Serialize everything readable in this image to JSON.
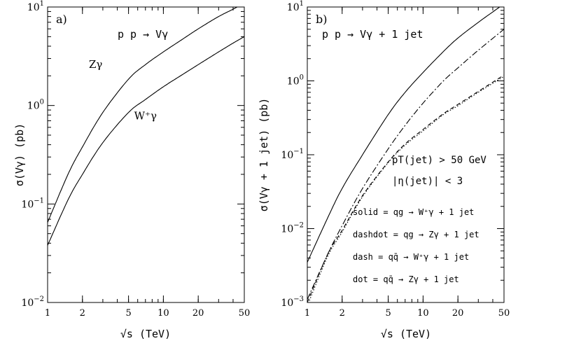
{
  "chart_data": [
    {
      "type": "line",
      "panel_label": "a)",
      "annotation": "p p → Vγ",
      "xlabel": "√s  (TeV)",
      "ylabel": "σ(Vγ)  (pb)",
      "xscale": "log",
      "yscale": "log",
      "xlim": [
        1,
        50
      ],
      "ylim": [
        0.01,
        10
      ],
      "xticks": [
        {
          "v": 1,
          "label": "1"
        },
        {
          "v": 2,
          "label": "2"
        },
        {
          "v": 5,
          "label": "5"
        },
        {
          "v": 10,
          "label": "10"
        },
        {
          "v": 20,
          "label": "20"
        },
        {
          "v": 50,
          "label": "50"
        }
      ],
      "yticks": [
        {
          "v": 0.01,
          "base": "10",
          "exp": "−2"
        },
        {
          "v": 0.1,
          "base": "10",
          "exp": "−1"
        },
        {
          "v": 1,
          "base": "10",
          "exp": "0"
        },
        {
          "v": 10,
          "base": "10",
          "exp": "1"
        }
      ],
      "series": [
        {
          "name": "Zγ",
          "style": "solid",
          "x": [
            1,
            1.5,
            2,
            3,
            5,
            7,
            10,
            15,
            20,
            30,
            40,
            50
          ],
          "y": [
            0.065,
            0.2,
            0.38,
            0.85,
            1.85,
            2.6,
            3.5,
            4.8,
            6.0,
            8.0,
            9.5,
            11.0
          ],
          "label": {
            "text": "Zγ",
            "x": 2.6,
            "y": 2.4
          }
        },
        {
          "name": "W⁺γ",
          "style": "solid",
          "x": [
            1,
            1.5,
            2,
            3,
            5,
            7,
            10,
            15,
            20,
            30,
            40,
            50
          ],
          "y": [
            0.038,
            0.11,
            0.2,
            0.42,
            0.85,
            1.15,
            1.55,
            2.1,
            2.6,
            3.5,
            4.3,
            5.0
          ],
          "label": {
            "text": "W⁺γ",
            "x": 7.0,
            "y": 0.72
          }
        }
      ]
    },
    {
      "type": "line",
      "panel_label": "b)",
      "annotation": "p p → Vγ + 1 jet",
      "xlabel": "√s  (TeV)",
      "ylabel": "σ(Vγ + 1 jet)  (pb)",
      "xscale": "log",
      "yscale": "log",
      "xlim": [
        1,
        50
      ],
      "ylim": [
        0.001,
        10
      ],
      "xticks": [
        {
          "v": 1,
          "label": "1"
        },
        {
          "v": 2,
          "label": "2"
        },
        {
          "v": 5,
          "label": "5"
        },
        {
          "v": 10,
          "label": "10"
        },
        {
          "v": 20,
          "label": "20"
        },
        {
          "v": 50,
          "label": "50"
        }
      ],
      "yticks": [
        {
          "v": 0.001,
          "base": "10",
          "exp": "−3"
        },
        {
          "v": 0.01,
          "base": "10",
          "exp": "−2"
        },
        {
          "v": 0.1,
          "base": "10",
          "exp": "−1"
        },
        {
          "v": 1,
          "base": "10",
          "exp": "0"
        },
        {
          "v": 10,
          "base": "10",
          "exp": "1"
        }
      ],
      "cuts": [
        "pT(jet) > 50 GeV",
        "|η(jet)| < 3"
      ],
      "legend": [
        "solid = qg → W⁺γ + 1 jet",
        "dashdot = qg → Zγ + 1 jet",
        "dash = qq̄ → W⁺γ + 1 jet",
        "dot = qq̄ → Zγ + 1 jet"
      ],
      "series": [
        {
          "name": "qg → W⁺γ + 1 jet",
          "style": "solid",
          "x": [
            1,
            1.5,
            2,
            3,
            5,
            7,
            10,
            15,
            20,
            30,
            50
          ],
          "y": [
            0.0035,
            0.014,
            0.035,
            0.1,
            0.35,
            0.7,
            1.3,
            2.5,
            3.8,
            6.2,
            11.0
          ]
        },
        {
          "name": "qg → Zγ + 1 jet",
          "style": "dashdot",
          "x": [
            1,
            1.5,
            2,
            3,
            5,
            7,
            10,
            15,
            20,
            30,
            50
          ],
          "y": [
            0.0011,
            0.0045,
            0.011,
            0.035,
            0.12,
            0.25,
            0.5,
            1.0,
            1.5,
            2.6,
            5.0
          ]
        },
        {
          "name": "qq̄ → W⁺γ + 1 jet",
          "style": "dash",
          "x": [
            1,
            1.5,
            2,
            3,
            5,
            7,
            10,
            15,
            20,
            30,
            50
          ],
          "y": [
            0.001,
            0.0045,
            0.0095,
            0.028,
            0.08,
            0.14,
            0.22,
            0.36,
            0.48,
            0.72,
            1.2
          ]
        },
        {
          "name": "qq̄ → Zγ + 1 jet",
          "style": "dot",
          "x": [
            1,
            1.5,
            2,
            3,
            5,
            7,
            10,
            15,
            20,
            30,
            50
          ],
          "y": [
            0.0009,
            0.0042,
            0.009,
            0.027,
            0.078,
            0.135,
            0.21,
            0.35,
            0.46,
            0.7,
            1.15
          ]
        }
      ]
    }
  ]
}
